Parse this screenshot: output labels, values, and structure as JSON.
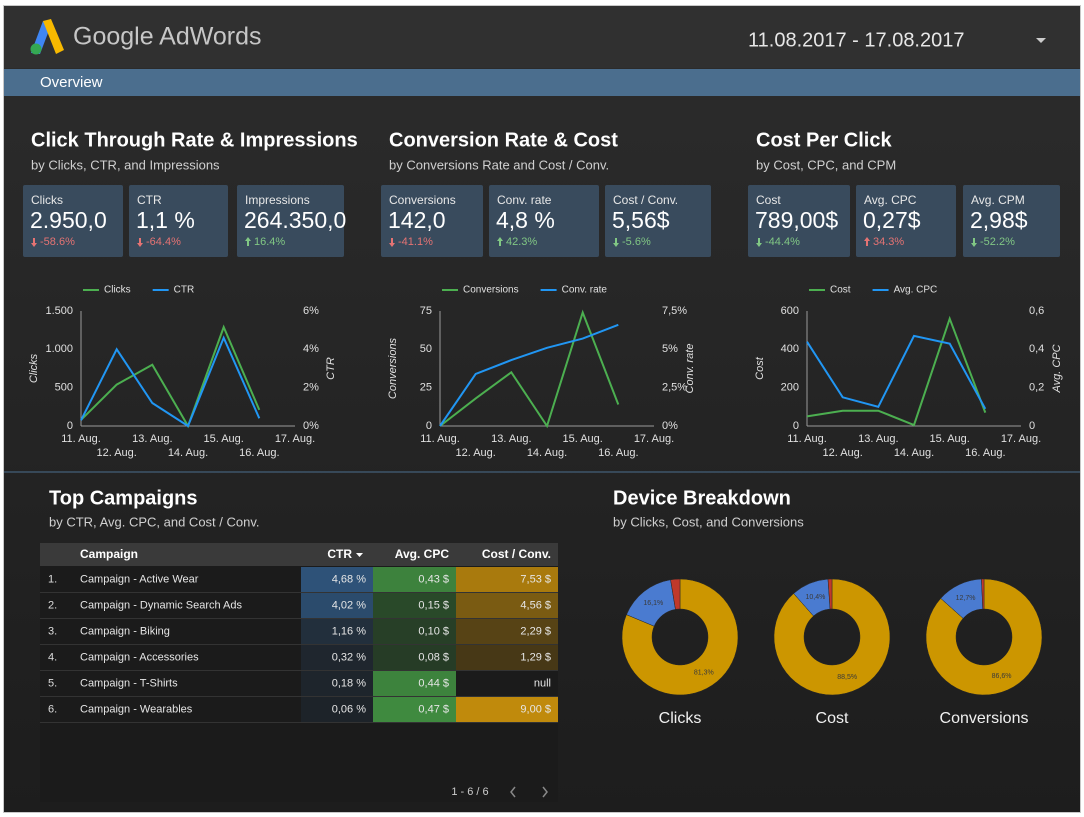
{
  "header": {
    "title": "Google AdWords",
    "date_range": "11.08.2017 - 17.08.2017"
  },
  "nav": {
    "tab": "Overview"
  },
  "sections": [
    {
      "title": "Click Through Rate & Impressions",
      "subtitle": "by Clicks, CTR, and Impressions",
      "kpis": [
        {
          "label": "Clicks",
          "value": "2.950,0",
          "delta": "-58.6%",
          "trend": "down",
          "color": "#e57373"
        },
        {
          "label": "CTR",
          "value": "1,1 %",
          "delta": "-64.4%",
          "trend": "down",
          "color": "#e57373"
        },
        {
          "label": "Impressions",
          "value": "264.350,0",
          "delta": "16.4%",
          "trend": "up",
          "color": "#81c784"
        }
      ]
    },
    {
      "title": "Conversion Rate & Cost",
      "subtitle": "by Conversions Rate and Cost / Conv.",
      "kpis": [
        {
          "label": "Conversions",
          "value": "142,0",
          "delta": "-41.1%",
          "trend": "down",
          "color": "#e57373"
        },
        {
          "label": "Conv. rate",
          "value": "4,8 %",
          "delta": "42.3%",
          "trend": "up",
          "color": "#81c784"
        },
        {
          "label": "Cost / Conv.",
          "value": "5,56$",
          "delta": "-5.6%",
          "trend": "down",
          "color": "#81c784"
        }
      ]
    },
    {
      "title": "Cost Per Click",
      "subtitle": "by Cost, CPC, and CPM",
      "kpis": [
        {
          "label": "Cost",
          "value": "789,00$",
          "delta": "-44.4%",
          "trend": "down",
          "color": "#81c784"
        },
        {
          "label": "Avg. CPC",
          "value": "0,27$",
          "delta": "34.3%",
          "trend": "up",
          "color": "#e57373"
        },
        {
          "label": "Avg. CPM",
          "value": "2,98$",
          "delta": "-52.2%",
          "trend": "down",
          "color": "#81c784"
        }
      ]
    }
  ],
  "chart_data": [
    {
      "type": "line",
      "x": [
        "11. Aug.",
        "12. Aug.",
        "13. Aug.",
        "14. Aug.",
        "15. Aug.",
        "16. Aug.",
        "17. Aug."
      ],
      "series": [
        {
          "name": "Clicks",
          "color": "#4caf50",
          "values": [
            80,
            540,
            800,
            0,
            1290,
            210,
            null
          ]
        },
        {
          "name": "CTR",
          "color": "#2196f3",
          "axis": "y2",
          "values": [
            0.3,
            4.0,
            1.2,
            0,
            4.6,
            0.4,
            null
          ]
        }
      ],
      "ylabel": "Clicks",
      "y2label": "CTR",
      "ylim": [
        0,
        1500
      ],
      "yticks": [
        0,
        500,
        {
          "value": 1000,
          "label": "1.000"
        },
        {
          "value": 1500,
          "label": "1.500"
        }
      ],
      "y2lim": [
        0,
        6
      ],
      "y2ticks": [
        {
          "value": 0,
          "label": "0%"
        },
        {
          "value": 2,
          "label": "2%"
        },
        {
          "value": 4,
          "label": "4%"
        },
        {
          "value": 6,
          "label": "6%"
        }
      ]
    },
    {
      "type": "line",
      "x": [
        "11. Aug.",
        "12. Aug.",
        "13. Aug.",
        "14. Aug.",
        "15. Aug.",
        "16. Aug.",
        "17. Aug."
      ],
      "series": [
        {
          "name": "Conversions",
          "color": "#4caf50",
          "values": [
            0,
            18,
            35,
            0,
            74,
            14,
            null
          ]
        },
        {
          "name": "Conv. rate",
          "color": "#2196f3",
          "axis": "y2",
          "values": [
            0,
            3.4,
            4.3,
            5.1,
            5.7,
            6.6,
            null
          ]
        }
      ],
      "ylabel": "Conversions",
      "y2label": "Conv. rate",
      "ylim": [
        0,
        75
      ],
      "yticks": [
        0,
        25,
        50,
        75
      ],
      "y2lim": [
        0,
        7.5
      ],
      "y2ticks": [
        {
          "value": 0,
          "label": "0%"
        },
        {
          "value": 2.5,
          "label": "2,5%"
        },
        {
          "value": 5,
          "label": "5%"
        },
        {
          "value": 7.5,
          "label": "7,5%"
        }
      ]
    },
    {
      "type": "line",
      "x": [
        "11. Aug.",
        "12. Aug.",
        "13. Aug.",
        "14. Aug.",
        "15. Aug.",
        "16. Aug.",
        "17. Aug."
      ],
      "series": [
        {
          "name": "Cost",
          "color": "#4caf50",
          "values": [
            50,
            80,
            80,
            5,
            560,
            70,
            null
          ]
        },
        {
          "name": "Avg. CPC",
          "color": "#2196f3",
          "axis": "y2",
          "values": [
            0.44,
            0.15,
            0.1,
            0.47,
            0.43,
            0.09,
            null
          ]
        }
      ],
      "ylabel": "Cost",
      "y2label": "Avg. CPC",
      "ylim": [
        0,
        600
      ],
      "yticks": [
        0,
        200,
        400,
        600
      ],
      "y2lim": [
        0,
        0.6
      ],
      "y2ticks": [
        0,
        {
          "value": 0.2,
          "label": "0,2"
        },
        {
          "value": 0.4,
          "label": "0,4"
        },
        {
          "value": 0.6,
          "label": "0,6"
        }
      ]
    },
    {
      "type": "pie",
      "donut": true,
      "title": "Clicks",
      "values": [
        81.3,
        16.1,
        2.6
      ],
      "value_labels": [
        "81,3%",
        "16,1%",
        null
      ],
      "colors": [
        "#cc9600",
        "#4a7bd0",
        "#c0392b"
      ]
    },
    {
      "type": "pie",
      "donut": true,
      "title": "Cost",
      "values": [
        88.5,
        10.4,
        1.1
      ],
      "value_labels": [
        "88,5%",
        "10,4%",
        null
      ],
      "colors": [
        "#cc9600",
        "#4a7bd0",
        "#c0392b"
      ]
    },
    {
      "type": "pie",
      "donut": true,
      "title": "Conversions",
      "values": [
        86.6,
        12.7,
        0.7
      ],
      "value_labels": [
        "86,6%",
        "12,7%",
        null
      ],
      "colors": [
        "#cc9600",
        "#4a7bd0",
        "#c0392b"
      ]
    }
  ],
  "campaigns": {
    "title": "Top Campaigns",
    "subtitle": "by CTR, Avg. CPC, and Cost / Conv.",
    "columns": [
      "Campaign",
      "CTR",
      "Avg. CPC",
      "Cost / Conv."
    ],
    "heat_colors": [
      null,
      "#2e5278",
      "#3f8a3f",
      "#c08a0c"
    ],
    "rows": [
      {
        "rank": "1.",
        "cells": [
          "Campaign - Active Wear",
          "4,68 %",
          "0,43 $",
          "7,53 $"
        ]
      },
      {
        "rank": "2.",
        "cells": [
          "Campaign - Dynamic Search Ads",
          "4,02 %",
          "0,15 $",
          "4,56 $"
        ]
      },
      {
        "rank": "3.",
        "cells": [
          "Campaign - Biking",
          "1,16 %",
          "0,10 $",
          "2,29 $"
        ]
      },
      {
        "rank": "4.",
        "cells": [
          "Campaign - Accessories",
          "0,32 %",
          "0,08 $",
          "1,29 $"
        ]
      },
      {
        "rank": "5.",
        "cells": [
          "Campaign - T-Shirts",
          "0,18 %",
          "0,44 $",
          "null"
        ]
      },
      {
        "rank": "6.",
        "cells": [
          "Campaign - Wearables",
          "0,06 %",
          "0,47 $",
          "9,00 $"
        ]
      }
    ],
    "pagination": "1 - 6 / 6"
  },
  "devices": {
    "title": "Device Breakdown",
    "subtitle": "by Clicks, Cost, and Conversions"
  }
}
